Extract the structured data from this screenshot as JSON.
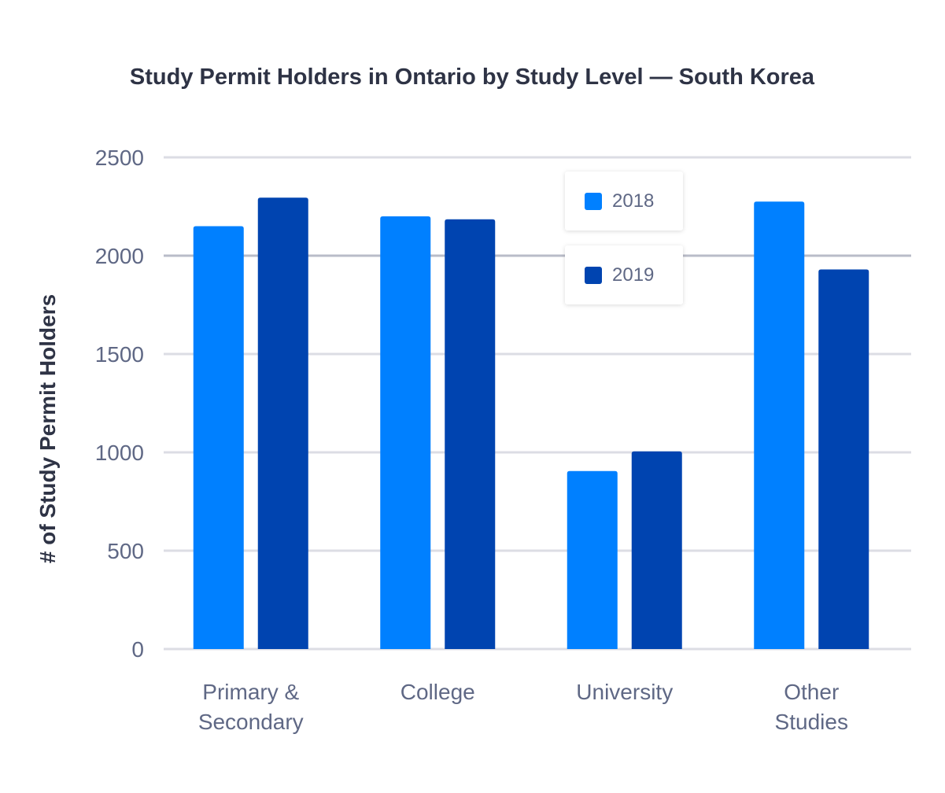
{
  "chart_data": {
    "type": "bar",
    "title": "Study Permit Holders in Ontario by Study Level — South Korea",
    "xlabel": "",
    "ylabel": "# of Study Permit Holders",
    "ylim": [
      0,
      2500
    ],
    "yticks": [
      0,
      500,
      1000,
      1500,
      2000,
      2500
    ],
    "grid": true,
    "legend_placement": "top-center",
    "categories": [
      [
        "Primary &",
        "Secondary"
      ],
      [
        "College"
      ],
      [
        "University"
      ],
      [
        "Other",
        "Studies"
      ]
    ],
    "series": [
      {
        "name": "2018",
        "color": "#0080ff",
        "values": [
          2150,
          2200,
          905,
          2275
        ]
      },
      {
        "name": "2019",
        "color": "#0044b0",
        "values": [
          2295,
          2185,
          1005,
          1930
        ]
      }
    ]
  }
}
